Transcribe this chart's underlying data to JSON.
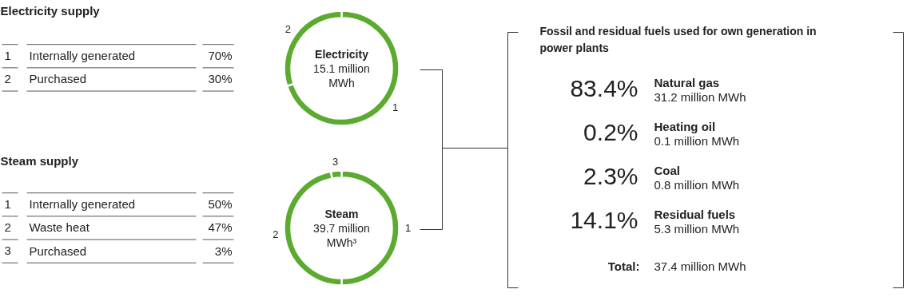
{
  "chart_data": [
    {
      "type": "other",
      "title": "Electricity supply",
      "categories": [
        "Internally generated",
        "Purchased"
      ],
      "value_labels": [
        "70%",
        "30%"
      ],
      "annotations": [
        "1",
        "2"
      ]
    },
    {
      "type": "donut",
      "subtitle": "Electricity",
      "categories": [
        "1",
        "2"
      ],
      "values": [
        70,
        30
      ],
      "colors": [
        "#5aab2f",
        "#5aab2f"
      ],
      "annotations": [
        "15.1 million MWh"
      ]
    },
    {
      "type": "other",
      "title": "Steam supply",
      "categories": [
        "Internally generated",
        "Waste heat",
        "Purchased"
      ],
      "value_labels": [
        "50%",
        "47%",
        "3%"
      ],
      "annotations": [
        "1",
        "2",
        "3"
      ]
    },
    {
      "type": "donut",
      "subtitle": "Steam",
      "categories": [
        "1",
        "2",
        "3"
      ],
      "values": [
        50,
        47,
        3
      ],
      "colors": [
        "#5aab2f",
        "#5aab2f",
        "#5aab2f"
      ],
      "annotations": [
        "39.7 million MWh³"
      ]
    },
    {
      "type": "other",
      "title": "Fossil and residual fuels used for own generation in power plants",
      "categories": [
        "Natural gas",
        "Heating oil",
        "Coal",
        "Residual fuels"
      ],
      "value_labels": [
        "83.4%",
        "0.2%",
        "2.3%",
        "14.1%"
      ],
      "annotations": [
        "31.2 million MWh",
        "0.1 million MWh",
        "0.8 million MWh",
        "5.3 million MWh",
        "Total:",
        "37.4 million MWh"
      ]
    }
  ]
}
